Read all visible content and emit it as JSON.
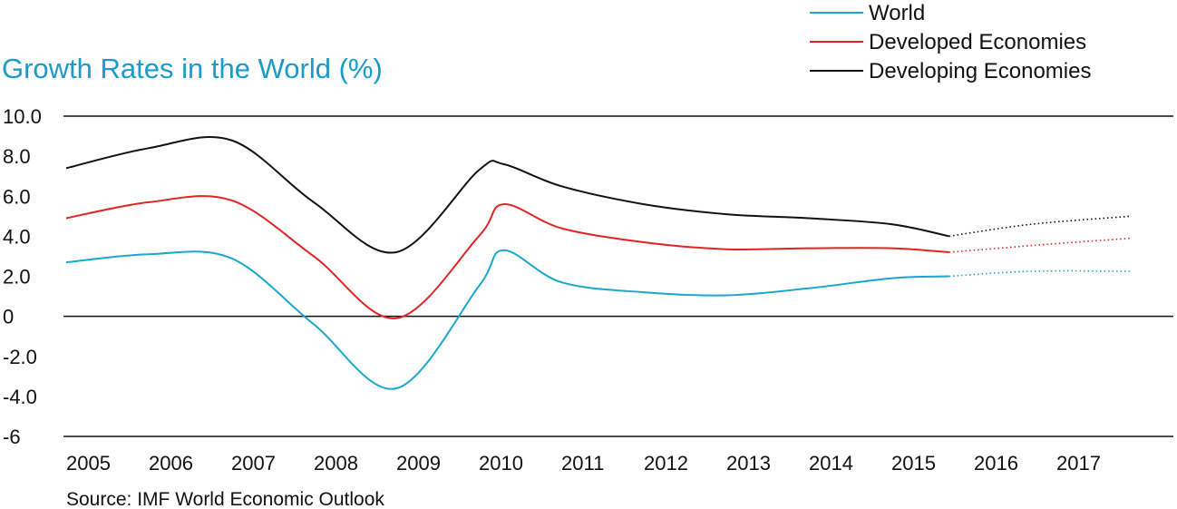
{
  "chart_data": {
    "type": "line",
    "title": "Growth Rates in the World  (%)",
    "source": "Source: IMF World Economic Outlook",
    "x": [
      "2005",
      "2006",
      "2007",
      "2008",
      "2009",
      "2010",
      "2011",
      "2012",
      "2013",
      "2014",
      "2015",
      "2016",
      "2017"
    ],
    "y_ticks": [
      "10.0",
      "8.0",
      "6.0",
      "4.0",
      "2.0",
      "0",
      "-2.0",
      "-4.0",
      "-6"
    ],
    "ylim": [
      -6,
      10
    ],
    "grid": "horizontal lines at 10.0, 0 and -6",
    "legend_position": "top-right",
    "forecast_from": "2016",
    "series": [
      {
        "name": "World",
        "color": "#1aa7cc",
        "points": [
          {
            "x": 2005.0,
            "y": 2.7
          },
          {
            "x": 2006.0,
            "y": 3.1
          },
          {
            "x": 2007.0,
            "y": 2.9
          },
          {
            "x": 2008.0,
            "y": -0.4
          },
          {
            "x": 2009.0,
            "y": -3.6
          },
          {
            "x": 2010.0,
            "y": 1.5
          },
          {
            "x": 2010.3,
            "y": 3.3
          },
          {
            "x": 2011.0,
            "y": 1.7
          },
          {
            "x": 2012.0,
            "y": 1.2
          },
          {
            "x": 2013.0,
            "y": 1.05
          },
          {
            "x": 2014.0,
            "y": 1.4
          },
          {
            "x": 2015.0,
            "y": 1.9
          },
          {
            "x": 2015.7,
            "y": 2.0
          }
        ],
        "forecast": [
          {
            "x": 2015.7,
            "y": 2.0
          },
          {
            "x": 2016.7,
            "y": 2.25
          },
          {
            "x": 2017.9,
            "y": 2.25
          }
        ]
      },
      {
        "name": "Developed Economies",
        "color": "#e02424",
        "points": [
          {
            "x": 2005.0,
            "y": 4.9
          },
          {
            "x": 2006.0,
            "y": 5.7
          },
          {
            "x": 2007.0,
            "y": 5.8
          },
          {
            "x": 2008.0,
            "y": 3.0
          },
          {
            "x": 2009.0,
            "y": -0.1
          },
          {
            "x": 2010.0,
            "y": 4.0
          },
          {
            "x": 2010.3,
            "y": 5.6
          },
          {
            "x": 2011.0,
            "y": 4.4
          },
          {
            "x": 2012.0,
            "y": 3.7
          },
          {
            "x": 2013.0,
            "y": 3.35
          },
          {
            "x": 2014.0,
            "y": 3.4
          },
          {
            "x": 2015.0,
            "y": 3.4
          },
          {
            "x": 2015.7,
            "y": 3.2
          }
        ],
        "forecast": [
          {
            "x": 2015.7,
            "y": 3.2
          },
          {
            "x": 2016.9,
            "y": 3.6
          },
          {
            "x": 2017.9,
            "y": 3.9
          }
        ]
      },
      {
        "name": "Developing Economies",
        "color": "#111111",
        "points": [
          {
            "x": 2005.0,
            "y": 7.4
          },
          {
            "x": 2006.0,
            "y": 8.4
          },
          {
            "x": 2007.0,
            "y": 8.8
          },
          {
            "x": 2008.0,
            "y": 5.7
          },
          {
            "x": 2009.0,
            "y": 3.2
          },
          {
            "x": 2010.0,
            "y": 7.3
          },
          {
            "x": 2010.3,
            "y": 7.6
          },
          {
            "x": 2011.0,
            "y": 6.5
          },
          {
            "x": 2012.0,
            "y": 5.6
          },
          {
            "x": 2013.0,
            "y": 5.1
          },
          {
            "x": 2014.0,
            "y": 4.9
          },
          {
            "x": 2015.0,
            "y": 4.6
          },
          {
            "x": 2015.7,
            "y": 4.0
          }
        ],
        "forecast": [
          {
            "x": 2015.7,
            "y": 4.0
          },
          {
            "x": 2016.7,
            "y": 4.6
          },
          {
            "x": 2017.9,
            "y": 5.0
          }
        ]
      }
    ]
  }
}
